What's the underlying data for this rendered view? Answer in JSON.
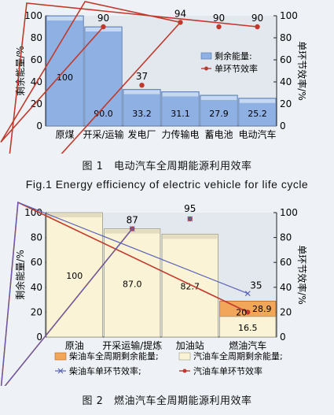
{
  "chart_data": [
    {
      "type": "bar",
      "categories": [
        "原煤",
        "开采/运输",
        "发电厂",
        "力传输电",
        "蓄电池",
        "电动汽车"
      ],
      "series": [
        {
          "name": "剩余能量",
          "type": "bar",
          "values": [
            100,
            90.0,
            33.2,
            31.1,
            27.9,
            25.2
          ],
          "labels": [
            "100",
            "90.0",
            "33.2",
            "31.1",
            "27.9",
            "25.2"
          ]
        },
        {
          "name": "单环节效率",
          "type": "line",
          "values": [
            null,
            90,
            37,
            94,
            90,
            90
          ],
          "labels": [
            "",
            "90",
            "37",
            "94",
            "90",
            "90"
          ]
        }
      ],
      "ylabel": "剩余能量/%",
      "y2label": "单环节效率/%",
      "ylim": [
        0,
        100
      ],
      "y2lim": [
        0,
        100
      ],
      "yticks": [
        "0",
        "20",
        "40",
        "60",
        "80",
        "100"
      ],
      "legend": "right",
      "colors": {
        "bar": "#8fb0e3",
        "line": "#c0392b"
      }
    },
    {
      "type": "bar",
      "categories": [
        "原油",
        "开采运输/提炼",
        "加油站",
        "燃油汽车"
      ],
      "series": [
        {
          "name": "柴油车全周期剩余能量",
          "type": "bar",
          "values": [
            100,
            87.0,
            82.7,
            28.9
          ],
          "labels": [
            "100",
            "87.0",
            "82.7",
            "28.9"
          ]
        },
        {
          "name": "汽油车全周期剩余能量",
          "type": "bar",
          "values": [
            100,
            87.0,
            82.7,
            16.5
          ],
          "labels": [
            "",
            "",
            "",
            "16.5"
          ]
        },
        {
          "name": "柴油车单环节效率",
          "type": "line",
          "values": [
            null,
            87,
            95,
            35
          ],
          "labels": [
            "",
            "87",
            "95",
            "35"
          ]
        },
        {
          "name": "汽油车单环节效率",
          "type": "line",
          "values": [
            null,
            87,
            95,
            20
          ],
          "labels": [
            "",
            "",
            "",
            "20"
          ]
        }
      ],
      "ylabel": "剩余能量/%",
      "y2label": "单环节效率/%",
      "ylim": [
        0,
        100
      ],
      "y2lim": [
        0,
        100
      ],
      "yticks": [
        "0",
        "20",
        "40",
        "60",
        "80",
        "100"
      ],
      "legend": "bottom",
      "colors": {
        "bar_diesel": "#f2a65a",
        "bar_gasoline": "#fbf3d6",
        "line_diesel": "#5b63b7",
        "line_gasoline": "#c0392b"
      }
    }
  ],
  "captions": {
    "fig1": "图 1　电动汽车全周期能源利用效率",
    "fig1_en": "Fig.1   Energy efficiency of electric vehicle for life cycle",
    "fig2": "图 2　燃油汽车全周期能源利用效率"
  }
}
